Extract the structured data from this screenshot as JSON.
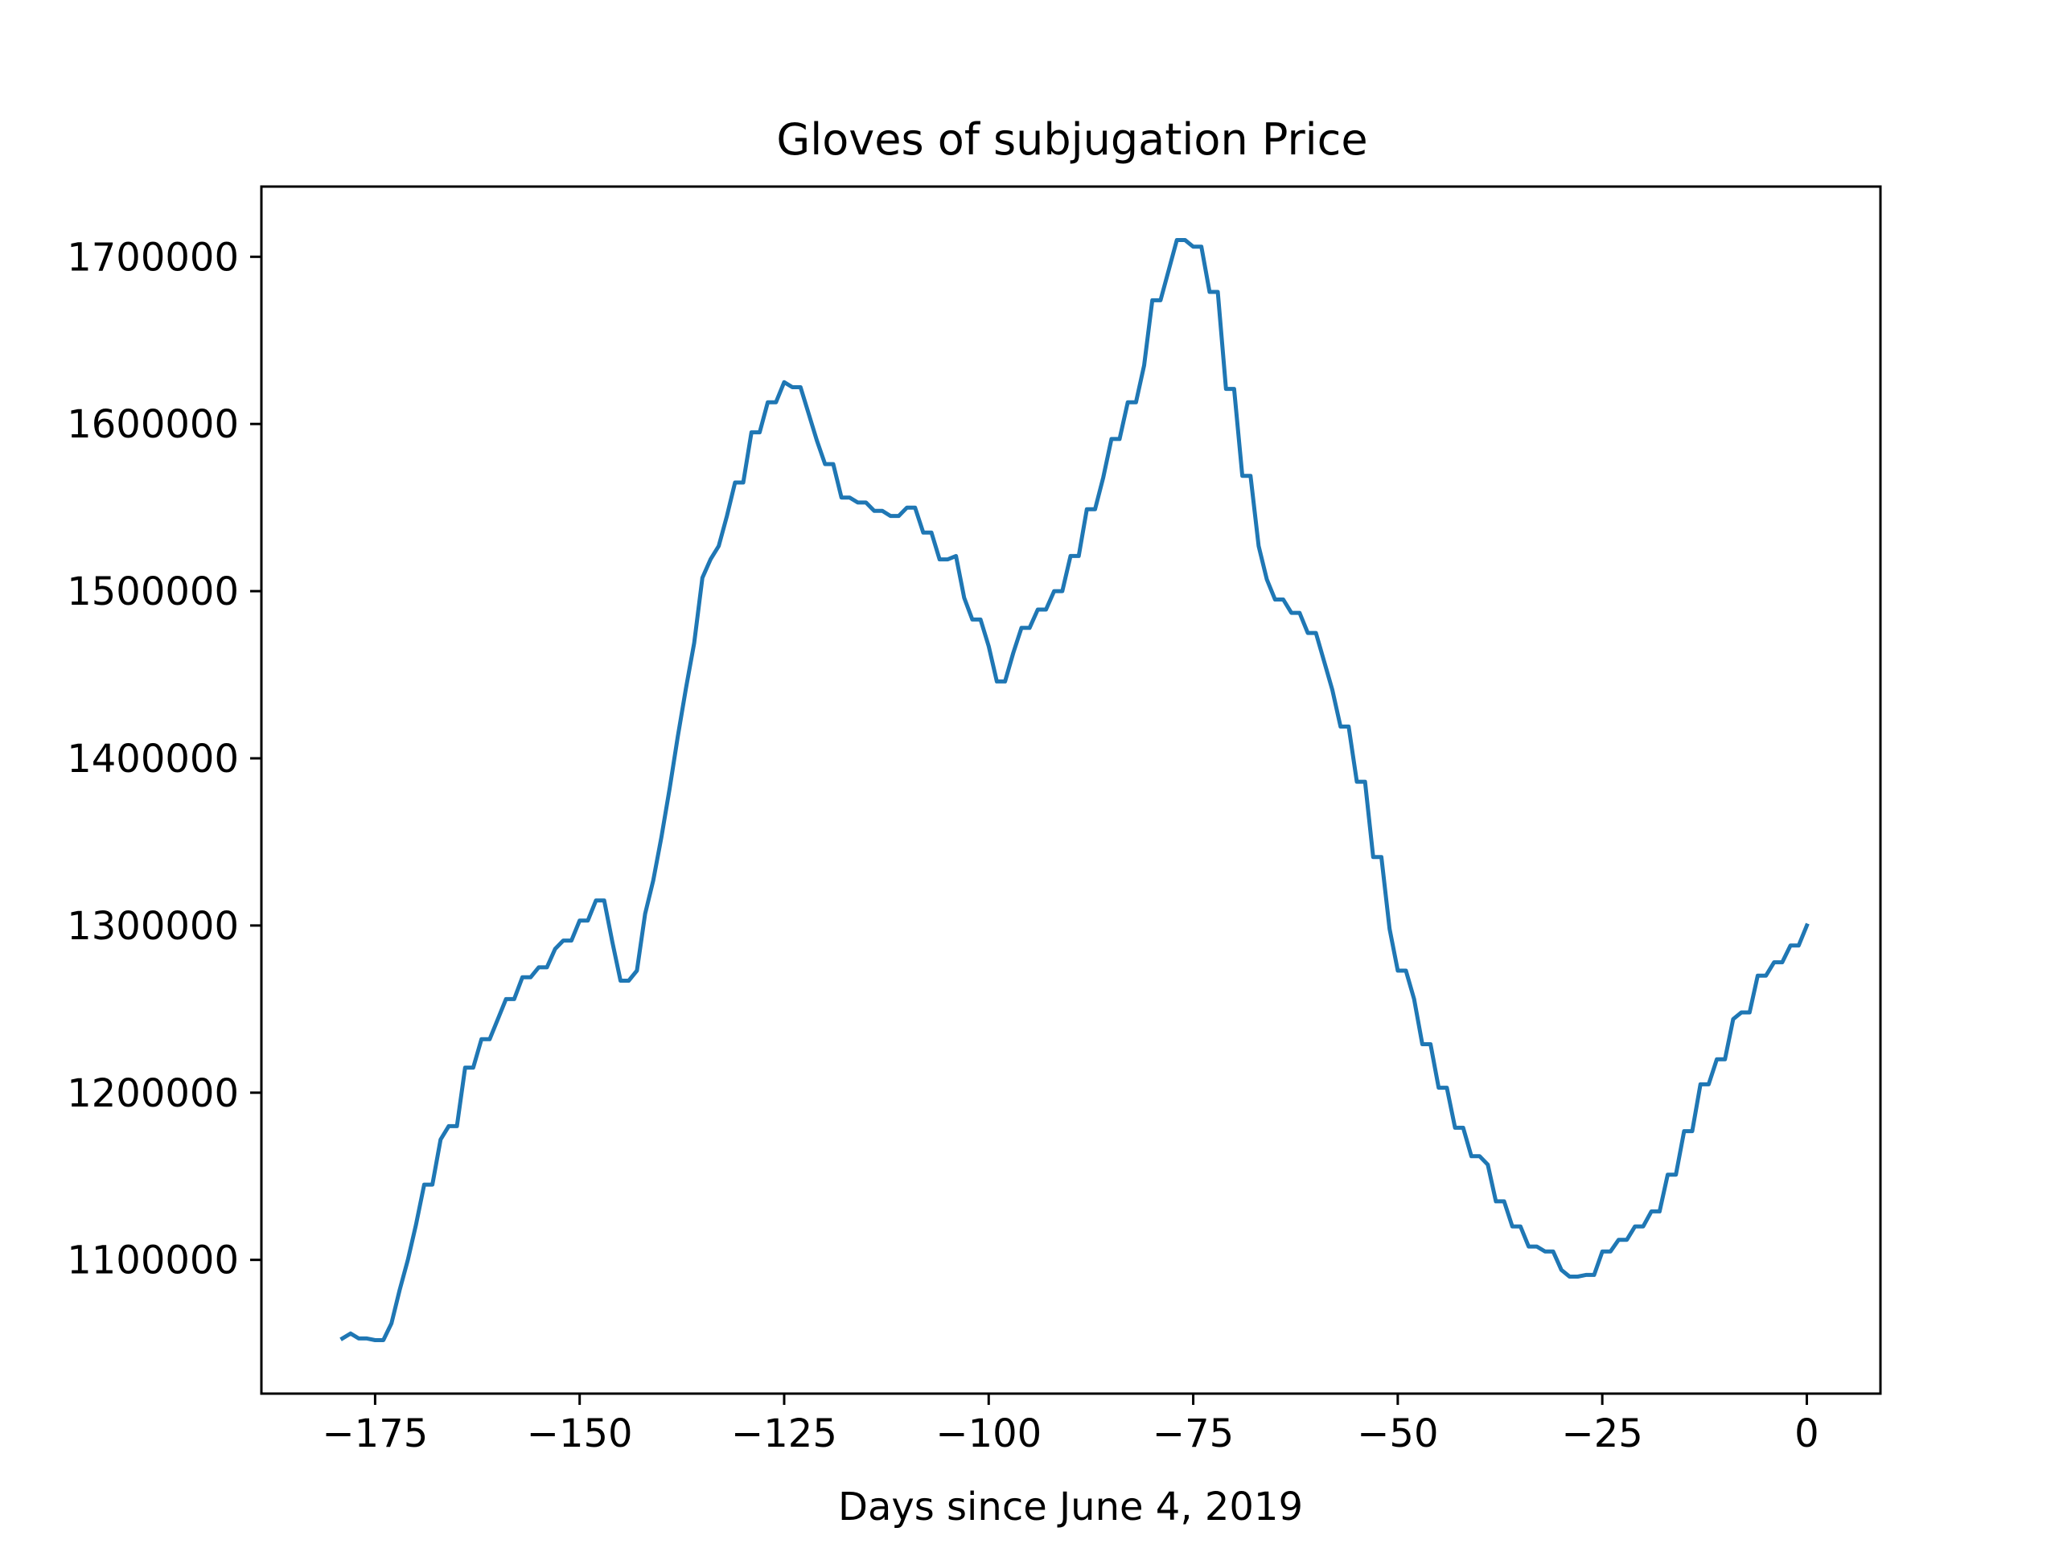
{
  "chart_data": {
    "type": "line",
    "title": "Gloves of subjugation Price",
    "xlabel": "Days since June 4, 2019",
    "ylabel": "",
    "xlim": [
      -188.9,
      9
    ],
    "ylim": [
      1020000,
      1742000
    ],
    "xticks": [
      -175,
      -150,
      -125,
      -100,
      -75,
      -50,
      -25,
      0
    ],
    "xtick_labels": [
      "−175",
      "−150",
      "−125",
      "−100",
      "−75",
      "−50",
      "−25",
      "0"
    ],
    "yticks": [
      1100000,
      1200000,
      1300000,
      1400000,
      1500000,
      1600000,
      1700000
    ],
    "ytick_labels": [
      "1100000",
      "1200000",
      "1300000",
      "1400000",
      "1500000",
      "1600000",
      "1700000"
    ],
    "grid": false,
    "legend": "none",
    "line_color": "#1f77b4",
    "series": [
      {
        "x": [
          -179,
          -178,
          -177,
          -176,
          -175,
          -174,
          -173,
          -172,
          -171,
          -170,
          -169,
          -168,
          -167,
          -166,
          -165,
          -164,
          -163,
          -162,
          -161,
          -160,
          -159,
          -158,
          -157,
          -156,
          -155,
          -154,
          -153,
          -152,
          -151,
          -150,
          -149,
          -148,
          -147,
          -146,
          -145,
          -144,
          -143,
          -142,
          -141,
          -140,
          -139,
          -138,
          -137,
          -136,
          -135,
          -134,
          -133,
          -132,
          -131,
          -130,
          -129,
          -128,
          -127,
          -126,
          -125,
          -124,
          -123,
          -122,
          -121,
          -120,
          -119,
          -118,
          -117,
          -116,
          -115,
          -114,
          -113,
          -112,
          -111,
          -110,
          -109,
          -108,
          -107,
          -106,
          -105,
          -104,
          -103,
          -102,
          -101,
          -100,
          -99,
          -98,
          -97,
          -96,
          -95,
          -94,
          -93,
          -92,
          -91,
          -90,
          -89,
          -88,
          -87,
          -86,
          -85,
          -84,
          -83,
          -82,
          -81,
          -80,
          -79,
          -78,
          -77,
          -76,
          -75,
          -74,
          -73,
          -72,
          -71,
          -70,
          -69,
          -68,
          -67,
          -66,
          -65,
          -64,
          -63,
          -62,
          -61,
          -60,
          -59,
          -58,
          -57,
          -56,
          -55,
          -54,
          -53,
          -52,
          -51,
          -50,
          -49,
          -48,
          -47,
          -46,
          -45,
          -44,
          -43,
          -42,
          -41,
          -40,
          -39,
          -38,
          -37,
          -36,
          -35,
          -34,
          -33,
          -32,
          -31,
          -30,
          -29,
          -28,
          -27,
          -26,
          -25,
          -24,
          -23,
          -22,
          -21,
          -20,
          -19,
          -18,
          -17,
          -16,
          -15,
          -14,
          -13,
          -12,
          -11,
          -10,
          -9,
          -8,
          -7,
          -6,
          -5,
          -4,
          -3,
          -2,
          -1,
          0
        ],
        "y": [
          1053000,
          1056000,
          1053000,
          1053000,
          1052000,
          1052000,
          1062000,
          1082000,
          1100000,
          1121000,
          1145000,
          1145000,
          1172000,
          1180000,
          1180000,
          1215000,
          1215000,
          1232000,
          1232000,
          1244000,
          1256000,
          1256000,
          1269000,
          1269000,
          1275000,
          1275000,
          1286000,
          1291000,
          1291000,
          1303000,
          1303000,
          1315000,
          1315000,
          1290000,
          1267000,
          1267000,
          1273000,
          1307000,
          1327000,
          1353000,
          1382000,
          1413000,
          1442000,
          1469000,
          1508000,
          1519000,
          1527000,
          1545000,
          1565000,
          1565000,
          1595000,
          1595000,
          1613000,
          1613000,
          1625000,
          1622000,
          1622000,
          1606000,
          1590000,
          1576000,
          1576000,
          1556000,
          1556000,
          1553000,
          1553000,
          1548000,
          1548000,
          1545000,
          1545000,
          1550000,
          1550000,
          1535000,
          1535000,
          1519000,
          1519000,
          1521000,
          1496000,
          1483000,
          1483000,
          1467000,
          1446000,
          1446000,
          1463000,
          1478000,
          1478000,
          1489000,
          1489000,
          1500000,
          1500000,
          1521000,
          1521000,
          1549000,
          1549000,
          1568000,
          1591000,
          1591000,
          1613000,
          1613000,
          1635000,
          1674000,
          1674000,
          1692000,
          1710000,
          1710000,
          1706000,
          1706000,
          1679000,
          1679000,
          1621000,
          1621000,
          1569000,
          1569000,
          1527000,
          1507000,
          1495000,
          1495000,
          1487000,
          1487000,
          1475000,
          1475000,
          1458000,
          1441000,
          1419000,
          1419000,
          1386000,
          1386000,
          1341000,
          1341000,
          1298000,
          1273000,
          1273000,
          1256000,
          1229000,
          1229000,
          1203000,
          1203000,
          1179000,
          1179000,
          1162000,
          1162000,
          1157000,
          1135000,
          1135000,
          1120000,
          1120000,
          1108000,
          1108000,
          1105000,
          1105000,
          1094000,
          1090000,
          1090000,
          1091000,
          1091000,
          1105000,
          1105000,
          1112000,
          1112000,
          1120000,
          1120000,
          1129000,
          1129000,
          1151000,
          1151000,
          1177000,
          1177000,
          1205000,
          1205000,
          1220000,
          1220000,
          1244000,
          1248000,
          1248000,
          1270000,
          1270000,
          1278000,
          1278000,
          1288000,
          1288000,
          1300000
        ]
      }
    ]
  }
}
